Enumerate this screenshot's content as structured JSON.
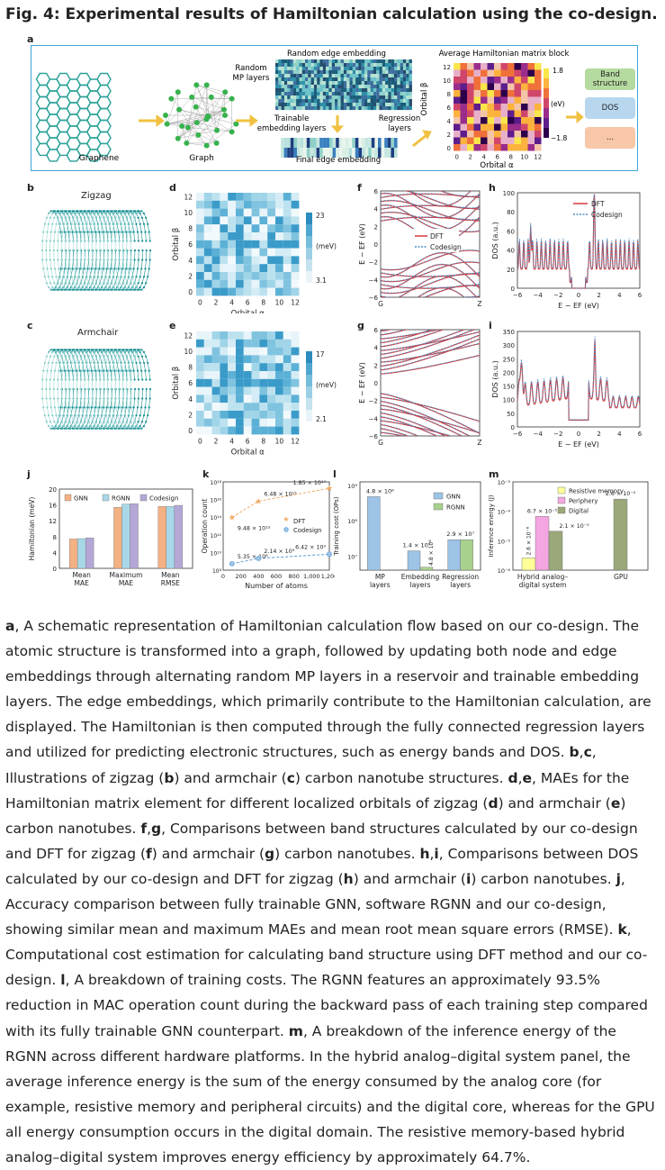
{
  "figure_title": "Fig. 4: Experimental results of Hamiltonian calculation using the co-design.",
  "panel_letters": {
    "a": "a",
    "b": "b",
    "c": "c",
    "d": "d",
    "e": "e",
    "f": "f",
    "g": "g",
    "h": "h",
    "i": "i",
    "j": "j",
    "k": "k",
    "l": "l",
    "m": "m"
  },
  "panel_a": {
    "graphene": "Graphene",
    "graph": "Graph",
    "random_mp": "Random\nMP layers",
    "random_edge": "Random edge embedding",
    "trainable": "Trainable\nembedding layers",
    "regression": "Regression\nlayers",
    "final_edge": "Final edge embedding",
    "avg_block": "Average Hamiltonian matrix block",
    "ylabel": "Orbital β",
    "xlabel": "Orbital α",
    "ticks": [
      "0",
      "2",
      "4",
      "6",
      "8",
      "10",
      "12"
    ],
    "cbar_max": "1.8",
    "cbar_min": "−1.8",
    "cbar_unit": "(eV)",
    "outputs": [
      "Band\nstructure",
      "DOS",
      "..."
    ]
  },
  "panel_b": {
    "label": "Zigzag"
  },
  "panel_c": {
    "label": "Armchair"
  },
  "panel_d": {
    "xlabel": "Orbital α",
    "ylabel": "Orbital β",
    "cbar_max": "23",
    "cbar_min": "3.1",
    "cbar_unit": "(meV)",
    "ticks": [
      "0",
      "2",
      "4",
      "6",
      "8",
      "10",
      "12"
    ]
  },
  "panel_e": {
    "xlabel": "Orbital α",
    "ylabel": "Orbital β",
    "cbar_max": "17",
    "cbar_min": "2.1",
    "cbar_unit": "(meV)",
    "ticks": [
      "0",
      "2",
      "4",
      "6",
      "8",
      "10",
      "12"
    ]
  },
  "panel_f": {
    "ylabel": "E − EF (eV)",
    "xticks": [
      "G",
      "Z"
    ],
    "yticks": [
      "6",
      "4",
      "2",
      "0",
      "−2",
      "−4",
      "−6"
    ],
    "legend": [
      "DFT",
      "Codesign"
    ]
  },
  "panel_g": {
    "ylabel": "E − EF (eV)",
    "xticks": [
      "G",
      "Z"
    ],
    "yticks": [
      "6",
      "4",
      "2",
      "0",
      "−2",
      "−4",
      "−6"
    ]
  },
  "panel_h": {
    "ylabel": "DOS (a.u.)",
    "xlabel": "E − EF (eV)",
    "yticks": [
      "100",
      "80",
      "60",
      "40",
      "20",
      "0"
    ],
    "xticks": [
      "−6",
      "−4",
      "−2",
      "0",
      "2",
      "4",
      "6"
    ],
    "legend": [
      "DFT",
      "Codesign"
    ]
  },
  "panel_i": {
    "ylabel": "DOS (a.u.)",
    "xlabel": "E − EF (eV)",
    "yticks": [
      "350",
      "300",
      "250",
      "200",
      "150",
      "100",
      "50",
      "0"
    ],
    "xticks": [
      "−6",
      "−4",
      "−2",
      "0",
      "2",
      "4",
      "6"
    ]
  },
  "chart_data": [
    {
      "type": "bar",
      "panel": "j",
      "categories": [
        "Mean\nMAE",
        "Maximum\nMAE",
        "Mean\nRMSE"
      ],
      "series": [
        {
          "name": "GNN",
          "values": [
            7.4,
            15.4,
            15.6
          ],
          "color": "#f4b183"
        },
        {
          "name": "RGNN",
          "values": [
            7.5,
            16.2,
            15.6
          ],
          "color": "#a8d8e8"
        },
        {
          "name": "Codesign",
          "values": [
            7.7,
            16.3,
            15.9
          ],
          "color": "#b4a7d6"
        }
      ],
      "ylabel": "Hamiltonian (meV)",
      "ylim": [
        0,
        20
      ],
      "yticks": [
        "20",
        "16",
        "12",
        "8",
        "4",
        "0"
      ],
      "legend_position": "top"
    },
    {
      "type": "line",
      "panel": "k",
      "x": [
        100,
        400,
        1200
      ],
      "series": [
        {
          "name": "DFT",
          "values": [
            94800000000000.0,
            6480000000000000.0,
            1.85e+17
          ],
          "labels": [
            "9.48 × 10¹³",
            "6.48 × 10¹⁵",
            "1.85 × 10¹⁷"
          ],
          "color": "#f0a860"
        },
        {
          "name": "Codesign",
          "values": [
            535000000.0,
            2140000000.0,
            6420000000.0
          ],
          "labels": [
            "5.35 × 10⁸",
            "2.14 × 10⁹",
            "6.42 × 10⁹"
          ],
          "color": "#5b9bd5"
        }
      ],
      "xlabel": "Number of atoms",
      "ylabel": "Operation count",
      "scale": "log",
      "ylim": [
        100000000.0,
        1e+18
      ],
      "yticks": [
        "10¹⁸",
        "10¹⁶",
        "10¹⁴",
        "10¹²",
        "10¹⁰",
        "10⁸"
      ],
      "xticks": [
        "0",
        "200",
        "400",
        "600",
        "800",
        "1,000",
        "1,200"
      ]
    },
    {
      "type": "bar",
      "panel": "l",
      "categories": [
        "MP\nlayers",
        "Embedding\nlayers",
        "Regression\nlayers"
      ],
      "series": [
        {
          "name": "GNN",
          "values": [
            480000000.0,
            14000000.0,
            29000000.0
          ],
          "color": "#9dc3e6"
        },
        {
          "name": "RGNN",
          "values": [
            0,
            4800000.0,
            29000000.0
          ],
          "color": "#a9d18e"
        }
      ],
      "bar_labels": [
        "4.8 × 10⁸",
        "1.4 × 10⁷",
        "4.8 × 10⁶",
        "2.9 × 10⁷"
      ],
      "ylabel": "Training cost (OPs)",
      "scale": "log",
      "yticks": [
        "10⁹",
        "10⁸",
        "10⁷"
      ]
    },
    {
      "type": "bar",
      "panel": "m",
      "categories": [
        "Hybrid analog–\ndigital system",
        "GPU"
      ],
      "series": [
        {
          "name": "Resistive memory",
          "values": [
            2.6e-06,
            0
          ],
          "color": "#ffff99"
        },
        {
          "name": "Periphery",
          "values": [
            6.7e-05,
            0
          ],
          "color": "#f4a6e0"
        },
        {
          "name": "Digital",
          "values": [
            2.1e-05,
            0.00026
          ],
          "color": "#9aa87a"
        }
      ],
      "bar_labels": [
        "2.6 × 10⁻⁶",
        "6.7 × 10⁻⁵",
        "2.1 × 10⁻⁵",
        "2.6 × 10⁻⁴"
      ],
      "ylabel": "Inference energy (J)",
      "scale": "log",
      "yticks": [
        "10⁻³",
        "10⁻⁴",
        "10⁻⁵",
        "10⁻⁶"
      ]
    }
  ],
  "caption": [
    {
      "t": "b",
      "v": "a"
    },
    {
      "t": "n",
      "v": ", A schematic representation of Hamiltonian calculation flow based on our co-design. The atomic structure is transformed into a graph, followed by updating both node and edge embeddings through alternating random MP layers in a reservoir and trainable embedding layers. The edge embeddings, which primarily contribute to the Hamiltonian calculation, are displayed. The Hamiltonian is then computed through the fully connected regression layers and utilized for predicting electronic structures, such as energy bands and DOS. "
    },
    {
      "t": "b",
      "v": "b"
    },
    {
      "t": "n",
      "v": ","
    },
    {
      "t": "b",
      "v": "c"
    },
    {
      "t": "n",
      "v": ", Illustrations of zigzag ("
    },
    {
      "t": "b",
      "v": "b"
    },
    {
      "t": "n",
      "v": ") and armchair ("
    },
    {
      "t": "b",
      "v": "c"
    },
    {
      "t": "n",
      "v": ") carbon nanotube structures. "
    },
    {
      "t": "b",
      "v": "d"
    },
    {
      "t": "n",
      "v": ","
    },
    {
      "t": "b",
      "v": "e"
    },
    {
      "t": "n",
      "v": ", MAEs for the Hamiltonian matrix element for different localized orbitals of zigzag ("
    },
    {
      "t": "b",
      "v": "d"
    },
    {
      "t": "n",
      "v": ") and armchair ("
    },
    {
      "t": "b",
      "v": "e"
    },
    {
      "t": "n",
      "v": ") carbon nanotubes. "
    },
    {
      "t": "b",
      "v": "f"
    },
    {
      "t": "n",
      "v": ","
    },
    {
      "t": "b",
      "v": "g"
    },
    {
      "t": "n",
      "v": ", Comparisons between band structures calculated by our co-design and DFT for zigzag ("
    },
    {
      "t": "b",
      "v": "f"
    },
    {
      "t": "n",
      "v": ") and armchair ("
    },
    {
      "t": "b",
      "v": "g"
    },
    {
      "t": "n",
      "v": ") carbon nanotubes. "
    },
    {
      "t": "b",
      "v": "h"
    },
    {
      "t": "n",
      "v": ","
    },
    {
      "t": "b",
      "v": "i"
    },
    {
      "t": "n",
      "v": ", Comparisons between DOS calculated by our co-design and DFT for zigzag ("
    },
    {
      "t": "b",
      "v": "h"
    },
    {
      "t": "n",
      "v": ") and armchair ("
    },
    {
      "t": "b",
      "v": "i"
    },
    {
      "t": "n",
      "v": ") carbon nanotubes. "
    },
    {
      "t": "b",
      "v": "j"
    },
    {
      "t": "n",
      "v": ", Accuracy comparison between fully trainable GNN, software RGNN and our co-design, showing similar mean and maximum MAEs and mean root mean square errors (RMSE). "
    },
    {
      "t": "b",
      "v": "k"
    },
    {
      "t": "n",
      "v": ", Computational cost estimation for calculating band structure using DFT method and our co-design. "
    },
    {
      "t": "b",
      "v": "l"
    },
    {
      "t": "n",
      "v": ", A breakdown of training costs. The RGNN features an approximately 93.5% reduction in MAC operation count during the backward pass of each training step compared with its fully trainable GNN counterpart. "
    },
    {
      "t": "b",
      "v": "m"
    },
    {
      "t": "n",
      "v": ", A breakdown of the inference energy of the RGNN across different hardware platforms. In the hybrid analog–digital system panel, the average inference energy is the sum of the energy consumed by the analog core (for example, resistive memory and peripheral circuits) and the digital core, whereas for the GPU all energy consumption occurs in the digital domain. The resistive memory-based hybrid analog–digital system improves energy efficiency by approximately 64.7%."
    }
  ]
}
